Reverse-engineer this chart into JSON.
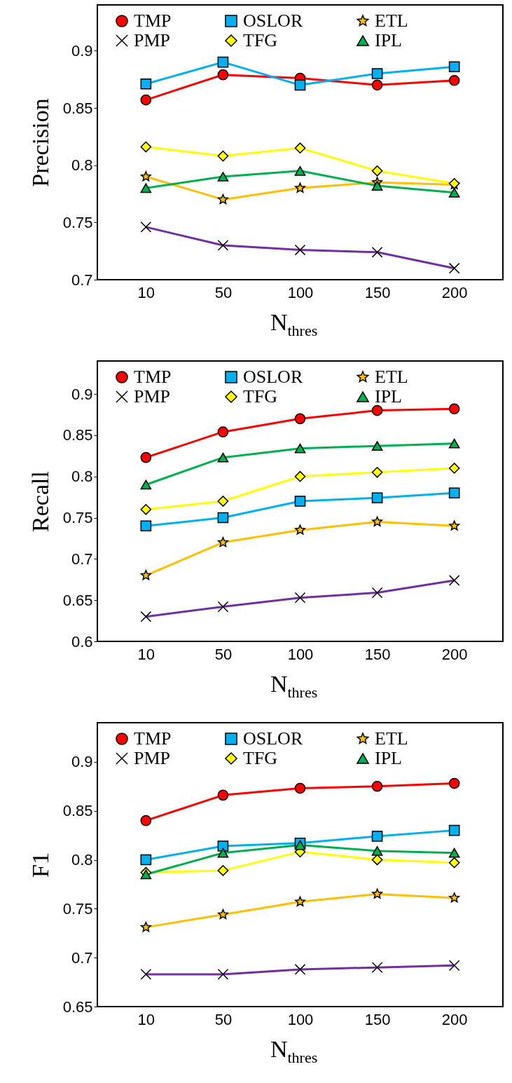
{
  "chart_data": [
    {
      "type": "line",
      "ylabel": "Precision",
      "xlabel": "N$_{thres}$",
      "categories": [
        "10",
        "50",
        "100",
        "150",
        "200"
      ],
      "ylim": [
        0.7,
        0.94
      ],
      "yticks": [
        0.7,
        0.75,
        0.8,
        0.85,
        0.9
      ],
      "grid": false,
      "legend": "top",
      "series": [
        {
          "name": "TMP",
          "color": "#ff0000",
          "marker": "circle",
          "values": [
            0.857,
            0.879,
            0.876,
            0.87,
            0.874
          ]
        },
        {
          "name": "OSLOR",
          "color": "#00b0f0",
          "marker": "square",
          "values": [
            0.871,
            0.89,
            0.87,
            0.88,
            0.886
          ]
        },
        {
          "name": "ETL",
          "color": "#ffc000",
          "marker": "star",
          "values": [
            0.79,
            0.77,
            0.78,
            0.785,
            0.783
          ]
        },
        {
          "name": "PMP",
          "color": "#7030a0",
          "marker": "cross",
          "values": [
            0.746,
            0.73,
            0.726,
            0.724,
            0.71
          ]
        },
        {
          "name": "TFG",
          "color": "#ffff00",
          "marker": "diamond",
          "values": [
            0.816,
            0.808,
            0.815,
            0.795,
            0.784
          ]
        },
        {
          "name": "IPL",
          "color": "#00b050",
          "marker": "triangle",
          "values": [
            0.78,
            0.79,
            0.795,
            0.782,
            0.776
          ]
        }
      ]
    },
    {
      "type": "line",
      "ylabel": "Recall",
      "xlabel": "N$_{thres}$",
      "categories": [
        "10",
        "50",
        "100",
        "150",
        "200"
      ],
      "ylim": [
        0.6,
        0.94
      ],
      "yticks": [
        0.6,
        0.65,
        0.7,
        0.75,
        0.8,
        0.85,
        0.9
      ],
      "grid": false,
      "legend": "top",
      "series": [
        {
          "name": "TMP",
          "color": "#ff0000",
          "marker": "circle",
          "values": [
            0.823,
            0.854,
            0.87,
            0.88,
            0.882
          ]
        },
        {
          "name": "OSLOR",
          "color": "#00b0f0",
          "marker": "square",
          "values": [
            0.74,
            0.75,
            0.77,
            0.774,
            0.78
          ]
        },
        {
          "name": "ETL",
          "color": "#ffc000",
          "marker": "star",
          "values": [
            0.68,
            0.72,
            0.735,
            0.745,
            0.74
          ]
        },
        {
          "name": "PMP",
          "color": "#7030a0",
          "marker": "cross",
          "values": [
            0.63,
            0.642,
            0.653,
            0.659,
            0.674
          ]
        },
        {
          "name": "TFG",
          "color": "#ffff00",
          "marker": "diamond",
          "values": [
            0.76,
            0.77,
            0.8,
            0.805,
            0.81
          ]
        },
        {
          "name": "IPL",
          "color": "#00b050",
          "marker": "triangle",
          "values": [
            0.79,
            0.823,
            0.834,
            0.837,
            0.84
          ]
        }
      ]
    },
    {
      "type": "line",
      "ylabel": "F1",
      "xlabel": "N$_{thres}$",
      "categories": [
        "10",
        "50",
        "100",
        "150",
        "200"
      ],
      "ylim": [
        0.65,
        0.94
      ],
      "yticks": [
        0.65,
        0.7,
        0.75,
        0.8,
        0.85,
        0.9
      ],
      "grid": false,
      "legend": "top",
      "series": [
        {
          "name": "TMP",
          "color": "#ff0000",
          "marker": "circle",
          "values": [
            0.84,
            0.866,
            0.873,
            0.875,
            0.878
          ]
        },
        {
          "name": "OSLOR",
          "color": "#00b0f0",
          "marker": "square",
          "values": [
            0.8,
            0.814,
            0.817,
            0.824,
            0.83
          ]
        },
        {
          "name": "ETL",
          "color": "#ffc000",
          "marker": "star",
          "values": [
            0.731,
            0.744,
            0.757,
            0.765,
            0.761
          ]
        },
        {
          "name": "PMP",
          "color": "#7030a0",
          "marker": "cross",
          "values": [
            0.683,
            0.683,
            0.688,
            0.69,
            0.692
          ]
        },
        {
          "name": "TFG",
          "color": "#ffff00",
          "marker": "diamond",
          "values": [
            0.787,
            0.789,
            0.808,
            0.8,
            0.797
          ]
        },
        {
          "name": "IPL",
          "color": "#00b050",
          "marker": "triangle",
          "values": [
            0.785,
            0.807,
            0.815,
            0.809,
            0.807
          ]
        }
      ]
    }
  ]
}
